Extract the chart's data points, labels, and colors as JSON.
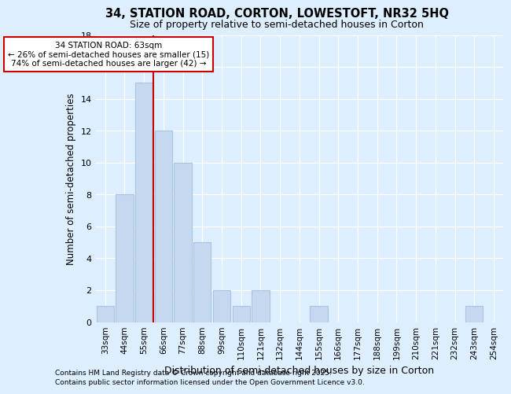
{
  "title1": "34, STATION ROAD, CORTON, LOWESTOFT, NR32 5HQ",
  "title2": "Size of property relative to semi-detached houses in Corton",
  "xlabel": "Distribution of semi-detached houses by size in Corton",
  "ylabel": "Number of semi-detached properties",
  "categories": [
    "33sqm",
    "44sqm",
    "55sqm",
    "66sqm",
    "77sqm",
    "88sqm",
    "99sqm",
    "110sqm",
    "121sqm",
    "132sqm",
    "144sqm",
    "155sqm",
    "166sqm",
    "177sqm",
    "188sqm",
    "199sqm",
    "210sqm",
    "221sqm",
    "232sqm",
    "243sqm",
    "254sqm"
  ],
  "values": [
    1,
    8,
    15,
    12,
    10,
    5,
    2,
    1,
    2,
    0,
    0,
    1,
    0,
    0,
    0,
    0,
    0,
    0,
    0,
    1,
    0
  ],
  "bar_color": "#c5d8ef",
  "bar_edge_color": "#a8c4e0",
  "subject_line_color": "#cc0000",
  "annotation_text": "34 STATION ROAD: 63sqm\n← 26% of semi-detached houses are smaller (15)\n74% of semi-detached houses are larger (42) →",
  "annotation_box_facecolor": "#ffffff",
  "annotation_box_edgecolor": "#cc0000",
  "ylim": [
    0,
    18
  ],
  "footer1": "Contains HM Land Registry data © Crown copyright and database right 2025.",
  "footer2": "Contains public sector information licensed under the Open Government Licence v3.0.",
  "bg_color": "#ddeeff",
  "plot_bg_color": "#ddeeff"
}
